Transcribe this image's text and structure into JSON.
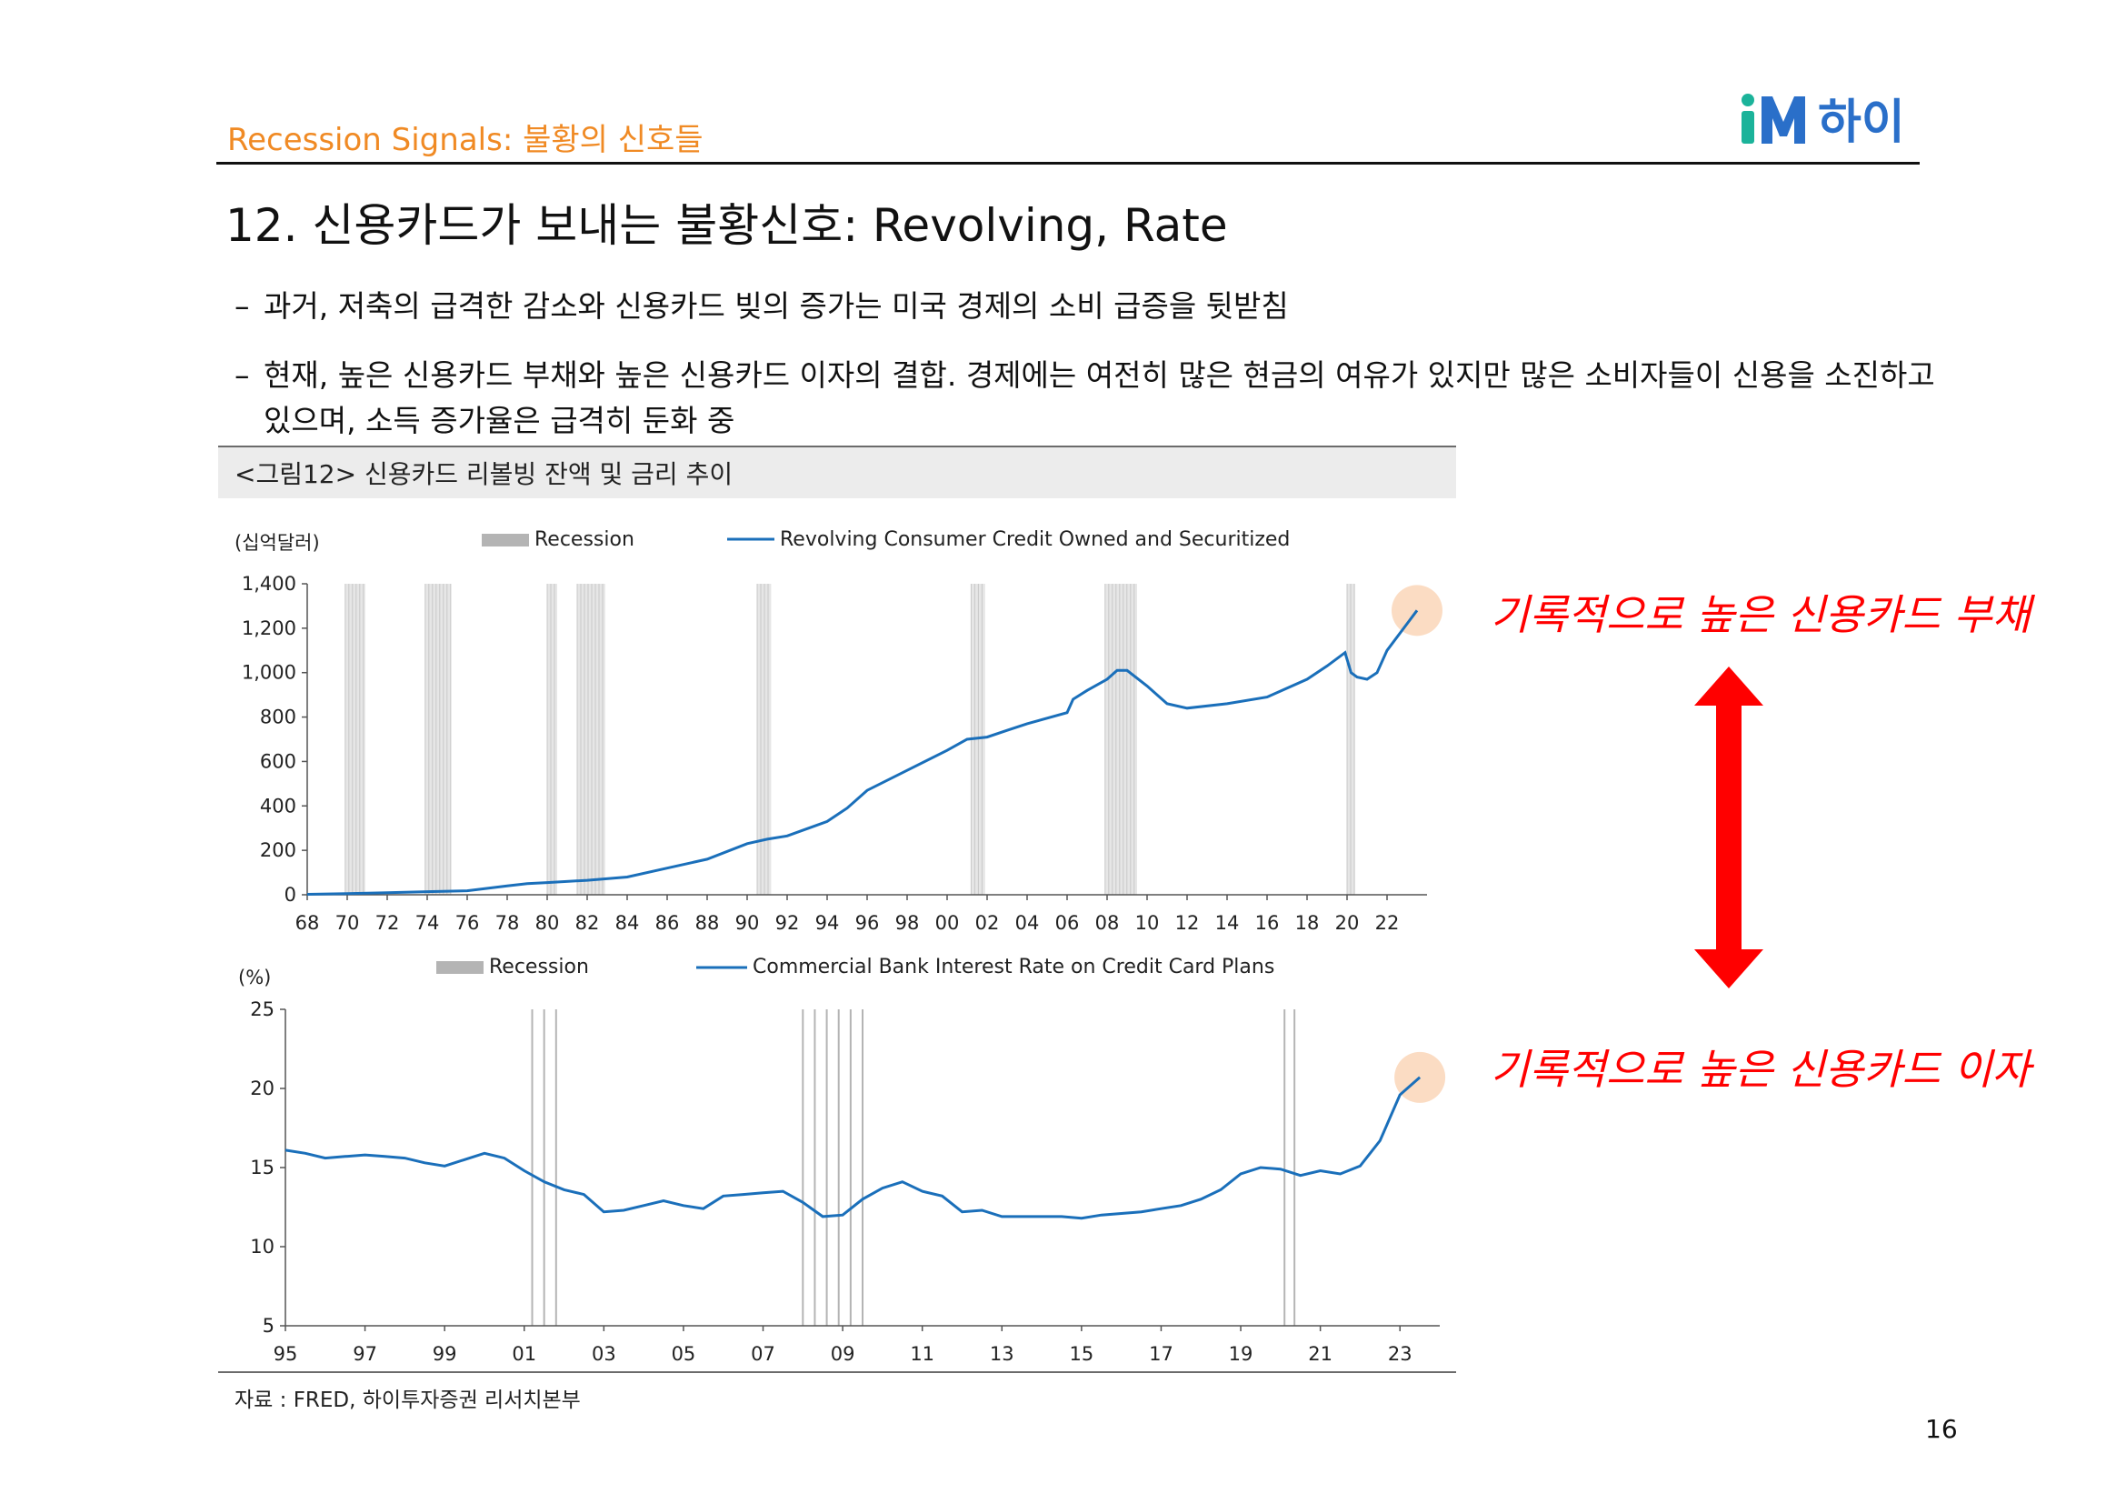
{
  "header": {
    "section_label": "Recession Signals: 불황의 신호들",
    "logo_text": "iM하이"
  },
  "title": "12. 신용카드가 보내는 불황신호: Revolving, Rate",
  "bullets": [
    {
      "dash": "–",
      "text": "과거, 저축의 급격한 감소와 신용카드 빚의 증가는 미국 경제의 소비 급증을 뒷받침"
    },
    {
      "dash": "–",
      "text": "현재, 높은 신용카드 부채와 높은 신용카드 이자의 결합. 경제에는 여전히 많은 현금의 여유가 있지만 많은 소비자들이 신용을 소진하고",
      "continuation": "있으며, 소득 증가율은 급격히 둔화 중"
    }
  ],
  "figure_caption": "<그림12> 신용카드 리볼빙 잔액 및 금리 추이",
  "source": "자료 : FRED, 하이투자증권 리서치본부",
  "annotations": {
    "top": "기록적으로 높은 신용카드 부채",
    "bottom": "기록적으로 높은 신용카드 이자"
  },
  "page_number": "16",
  "colors": {
    "accent_orange": "#f08a24",
    "series_blue": "#1a6fba",
    "recession_gray": "#b4b4b4",
    "annotation_red": "#ff0000",
    "highlight_peach": "#fbdcc3",
    "logo_green": "#1bb39a",
    "logo_blue": "#2a6fc9"
  },
  "chart_data": [
    {
      "type": "line",
      "unit_label": "(십억달러)",
      "legend": {
        "recession_label": "Recession",
        "series_label": "Revolving Consumer Credit Owned and Securitized"
      },
      "x_ticks": [
        "68",
        "70",
        "72",
        "74",
        "76",
        "78",
        "80",
        "82",
        "84",
        "86",
        "88",
        "90",
        "92",
        "94",
        "96",
        "98",
        "00",
        "02",
        "04",
        "06",
        "08",
        "10",
        "12",
        "14",
        "16",
        "18",
        "20",
        "22"
      ],
      "y_ticks": [
        "0",
        "200",
        "400",
        "600",
        "800",
        "1,000",
        "1,200",
        "1,400"
      ],
      "ylim": [
        0,
        1400
      ],
      "xlim": [
        1968,
        2024
      ],
      "recessions": [
        [
          1969.9,
          1970.9
        ],
        [
          1973.9,
          1975.2
        ],
        [
          1980.0,
          1980.5
        ],
        [
          1981.5,
          1982.9
        ],
        [
          1990.5,
          1991.2
        ],
        [
          2001.2,
          2001.9
        ],
        [
          2007.9,
          2009.5
        ],
        [
          2020.0,
          2020.4
        ]
      ],
      "series": [
        {
          "name": "Revolving Consumer Credit Owned and Securitized",
          "x": [
            1968,
            1970,
            1972,
            1974,
            1975,
            1976,
            1978,
            1979,
            1980,
            1982,
            1984,
            1986,
            1988,
            1990,
            1991,
            1992,
            1994,
            1995,
            1996,
            1998,
            2000,
            2001,
            2002,
            2003,
            2004,
            2006,
            2006.3,
            2007,
            2008,
            2008.5,
            2009,
            2010,
            2011,
            2012,
            2014,
            2016,
            2018,
            2019,
            2019.9,
            2020.2,
            2020.5,
            2021,
            2021.5,
            2022,
            2023,
            2023.5
          ],
          "values": [
            2,
            5,
            9,
            14,
            16,
            18,
            40,
            50,
            55,
            65,
            80,
            120,
            160,
            230,
            250,
            265,
            330,
            390,
            470,
            560,
            650,
            700,
            710,
            740,
            770,
            820,
            880,
            920,
            970,
            1010,
            1010,
            940,
            860,
            840,
            860,
            890,
            970,
            1030,
            1090,
            1000,
            980,
            970,
            1000,
            1100,
            1220,
            1280
          ]
        }
      ],
      "highlight_point": {
        "x": 2023.5,
        "y": 1280
      }
    },
    {
      "type": "line",
      "unit_label": "(%)",
      "legend": {
        "recession_label": "Recession",
        "series_label": "Commercial Bank Interest Rate on Credit Card Plans"
      },
      "x_ticks": [
        "95",
        "97",
        "99",
        "01",
        "03",
        "05",
        "07",
        "09",
        "11",
        "13",
        "15",
        "17",
        "19",
        "21",
        "23"
      ],
      "y_ticks": [
        "5",
        "10",
        "15",
        "20",
        "25"
      ],
      "ylim": [
        5,
        25
      ],
      "xlim": [
        1995,
        2024
      ],
      "recession_lines": [
        2001.2,
        2001.5,
        2001.8,
        2008.0,
        2008.3,
        2008.6,
        2008.9,
        2009.2,
        2009.5,
        2020.1,
        2020.35
      ],
      "series": [
        {
          "name": "Commercial Bank Interest Rate on Credit Card Plans",
          "x": [
            1995,
            1995.5,
            1996,
            1996.5,
            1997,
            1997.5,
            1998,
            1998.5,
            1999,
            1999.5,
            2000,
            2000.5,
            2001,
            2001.5,
            2002,
            2002.5,
            2003,
            2003.5,
            2004,
            2004.5,
            2005,
            2005.5,
            2006,
            2006.5,
            2007,
            2007.5,
            2008,
            2008.5,
            2009,
            2009.5,
            2010,
            2010.5,
            2011,
            2011.5,
            2012,
            2012.5,
            2013,
            2013.5,
            2014,
            2014.5,
            2015,
            2015.5,
            2016,
            2016.5,
            2017,
            2017.5,
            2018,
            2018.5,
            2019,
            2019.5,
            2020,
            2020.5,
            2021,
            2021.5,
            2022,
            2022.5,
            2023,
            2023.5
          ],
          "values": [
            16.1,
            15.9,
            15.6,
            15.7,
            15.8,
            15.7,
            15.6,
            15.3,
            15.1,
            15.5,
            15.9,
            15.6,
            14.8,
            14.1,
            13.6,
            13.3,
            12.2,
            12.3,
            12.6,
            12.9,
            12.6,
            12.4,
            13.2,
            13.3,
            13.4,
            13.5,
            12.8,
            11.9,
            12.0,
            13.0,
            13.7,
            14.1,
            13.5,
            13.2,
            12.2,
            12.3,
            11.9,
            11.9,
            11.9,
            11.9,
            11.8,
            12.0,
            12.1,
            12.2,
            12.4,
            12.6,
            13.0,
            13.6,
            14.6,
            15.0,
            14.9,
            14.5,
            14.8,
            14.6,
            15.1,
            16.7,
            19.6,
            20.7
          ]
        }
      ],
      "highlight_point": {
        "x": 2023.5,
        "y": 20.7
      }
    }
  ]
}
